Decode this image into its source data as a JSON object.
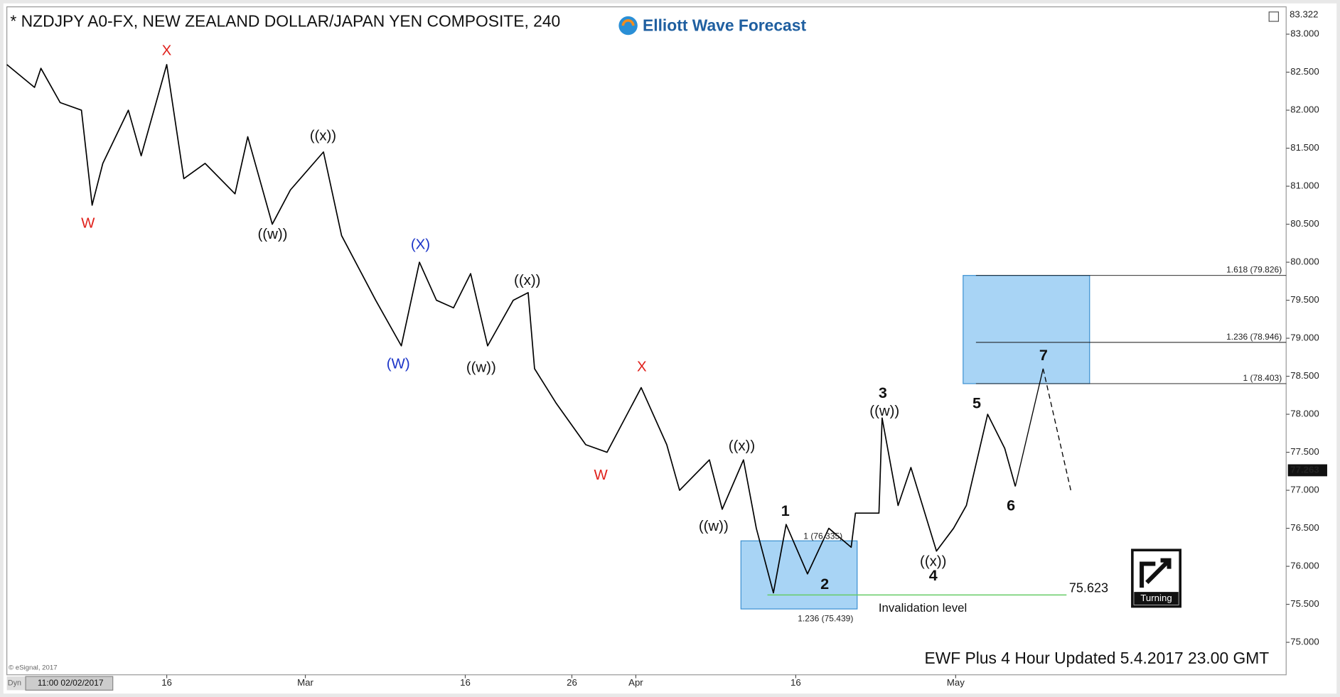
{
  "chart_data": {
    "type": "line",
    "title": "* NZDJPY A0-FX, NEW ZEALAND DOLLAR/JAPAN YEN COMPOSITE, 240",
    "logo": "Elliott Wave Forecast",
    "footer": "EWF Plus 4 Hour Updated 5.4.2017 23.00 GMT",
    "copyright": "© eSignal, 2017",
    "start_label": "11:00 02/02/2017",
    "mode_label": "Dyn",
    "badge": "Turning",
    "xlim": [
      32,
      152
    ],
    "ylim": [
      74.573,
      83.337
    ],
    "xticks": [
      {
        "value": 47,
        "label": "16"
      },
      {
        "value": 60,
        "label": "Mar"
      },
      {
        "value": 75,
        "label": "16"
      },
      {
        "value": 85,
        "label": "26"
      },
      {
        "value": 91,
        "label": "Apr"
      },
      {
        "value": 106,
        "label": "16"
      },
      {
        "value": 121,
        "label": "May"
      }
    ],
    "yticks": [
      {
        "value": 75,
        "label": "75.000"
      },
      {
        "value": 75.5,
        "label": "75.500"
      },
      {
        "value": 76,
        "label": "76.000"
      },
      {
        "value": 76.5,
        "label": "76.500"
      },
      {
        "value": 77,
        "label": "77.000"
      },
      {
        "value": 77.5,
        "label": "77.500"
      },
      {
        "value": 78,
        "label": "78.000"
      },
      {
        "value": 78.5,
        "label": "78.500"
      },
      {
        "value": 79,
        "label": "79.000"
      },
      {
        "value": 79.5,
        "label": "79.500"
      },
      {
        "value": 80,
        "label": "80.000"
      },
      {
        "value": 80.5,
        "label": "80.500"
      },
      {
        "value": 81,
        "label": "81.000"
      },
      {
        "value": 81.5,
        "label": "81.500"
      },
      {
        "value": 82,
        "label": "82.000"
      },
      {
        "value": 82.5,
        "label": "82.500"
      },
      {
        "value": 83,
        "label": "83.000"
      }
    ],
    "top_price": {
      "value": 83.322,
      "label": "83.322"
    },
    "last_price": {
      "value": 77.263,
      "label": "77.263"
    },
    "series": [
      {
        "color": "#000000",
        "dash": false,
        "x": [
          32.0,
          34.6,
          35.2,
          37.0,
          39.0,
          40.0,
          41.0,
          43.4,
          44.6,
          47.0,
          48.6,
          50.6,
          53.4,
          54.6,
          56.9,
          58.6,
          61.7,
          63.4,
          66.6,
          69.0,
          70.7,
          72.3,
          73.9,
          75.5,
          77.1,
          79.5,
          80.9,
          81.5,
          83.5,
          86.3,
          88.3,
          91.5,
          93.9,
          95.1,
          97.9,
          99.1,
          101.1,
          102.3,
          103.9,
          105.1,
          107.1,
          109.1,
          111.2,
          111.6,
          113.8,
          114.1,
          115.6,
          116.8,
          119.2,
          120.8,
          122.0,
          124.0,
          125.6,
          126.6
        ],
        "values": [
          82.6,
          82.3,
          82.55,
          82.1,
          82.0,
          80.75,
          81.3,
          82.0,
          81.4,
          82.6,
          81.1,
          81.3,
          80.9,
          81.65,
          80.5,
          80.95,
          81.45,
          80.35,
          79.5,
          78.9,
          80.0,
          79.5,
          79.4,
          79.85,
          78.9,
          79.5,
          79.6,
          78.6,
          78.15,
          77.6,
          77.5,
          78.35,
          77.6,
          77.0,
          77.4,
          76.75,
          77.4,
          76.5,
          75.65,
          76.55,
          75.9,
          76.5,
          76.25,
          76.7,
          76.7,
          77.95,
          76.8,
          77.3,
          76.2,
          76.5,
          76.8,
          78.0,
          77.55,
          77.05
        ]
      },
      {
        "color": "#000000",
        "dash": false,
        "x": [
          126.6,
          129.2
        ],
        "values": [
          77.05,
          78.6
        ]
      },
      {
        "color": "#000000",
        "dash": true,
        "x": [
          129.2,
          131.8
        ],
        "values": [
          78.6,
          77.0
        ]
      }
    ],
    "fib_levels": [
      {
        "value": 79.826,
        "label": "1.618 (79.826)"
      },
      {
        "value": 78.946,
        "label": "1.236 (78.946)"
      },
      {
        "value": 78.403,
        "label": "1 (78.403)"
      },
      {
        "value": 76.335,
        "label": "1 (76.335)"
      },
      {
        "value": 75.439,
        "label": "1.236 (75.439)"
      }
    ],
    "zone_color": "#a8d4f5",
    "invalidation": {
      "value": 75.623,
      "label": "75.623",
      "text": "Invalidation level",
      "color": "#66cc66"
    },
    "wave_labels": [
      {
        "text": "X",
        "color": "#e0201b"
      },
      {
        "text": "W",
        "color": "#e0201b"
      },
      {
        "text": "((w))",
        "color": "#111111"
      },
      {
        "text": "((x))",
        "color": "#111111"
      },
      {
        "text": "(X)",
        "color": "#1a33c8"
      },
      {
        "text": "(W)",
        "color": "#1a33c8"
      },
      {
        "text": "((w))",
        "color": "#111111"
      },
      {
        "text": "((x))",
        "color": "#111111"
      },
      {
        "text": "X",
        "color": "#e0201b"
      },
      {
        "text": "W",
        "color": "#e0201b"
      },
      {
        "text": "((x))",
        "color": "#111111"
      },
      {
        "text": "((w))",
        "color": "#111111"
      },
      {
        "text": "1",
        "color": "#111111"
      },
      {
        "text": "2",
        "color": "#111111"
      },
      {
        "text": "3",
        "color": "#111111"
      },
      {
        "text": "((w))",
        "color": "#111111"
      },
      {
        "text": "5",
        "color": "#111111"
      },
      {
        "text": "6",
        "color": "#111111"
      },
      {
        "text": "7",
        "color": "#111111"
      },
      {
        "text": "((x))",
        "color": "#111111"
      },
      {
        "text": "4",
        "color": "#111111"
      }
    ]
  }
}
